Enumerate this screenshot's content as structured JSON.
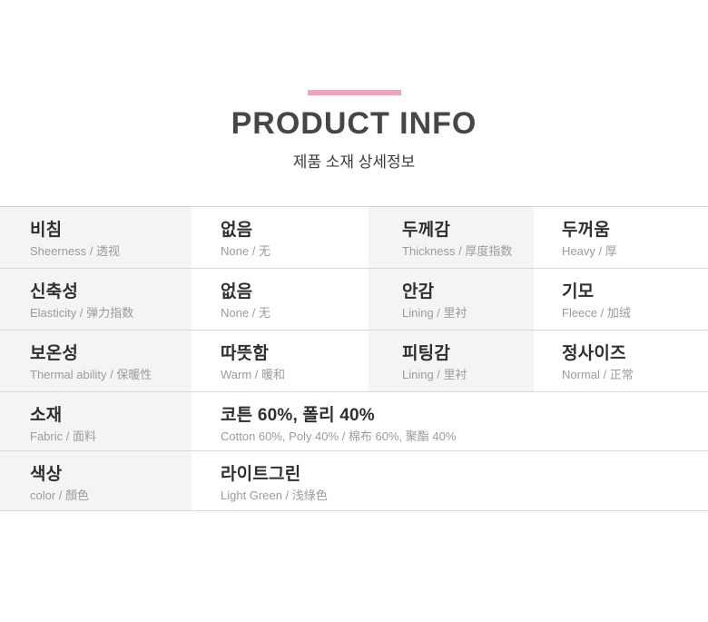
{
  "header": {
    "title": "PRODUCT INFO",
    "subtitle": "제품 소재 상세정보"
  },
  "colors": {
    "accent_pink": "#f3a2bc",
    "title_gray": "#45454a",
    "label_cell_bg": "#f4f4f4",
    "divider": "#d9d9d9",
    "main_text": "#2f2f33",
    "sub_text": "#9b9b9b"
  },
  "table": {
    "rows": [
      {
        "cells": [
          {
            "main": "비침",
            "sub": "Sheerness / 透视"
          },
          {
            "main": "없음",
            "sub": "None / 无"
          },
          {
            "main": "두께감",
            "sub": "Thickness / 厚度指数"
          },
          {
            "main": "두꺼움",
            "sub": "Heavy / 厚"
          }
        ]
      },
      {
        "cells": [
          {
            "main": "신축성",
            "sub": "Elasticity / 弹力指数"
          },
          {
            "main": "없음",
            "sub": "None / 无"
          },
          {
            "main": "안감",
            "sub": "Lining / 里衬"
          },
          {
            "main": "기모",
            "sub": "Fleece / 加绒"
          }
        ]
      },
      {
        "cells": [
          {
            "main": "보온성",
            "sub": "Thermal ability / 保暖性"
          },
          {
            "main": "따뜻함",
            "sub": "Warm / 暖和"
          },
          {
            "main": "피팅감",
            "sub": "Lining / 里衬"
          },
          {
            "main": "정사이즈",
            "sub": "Normal / 正常"
          }
        ]
      },
      {
        "cells": [
          {
            "main": "소재",
            "sub": "Fabric / 面料"
          },
          {
            "main": "코튼 60%, 폴리 40%",
            "sub": "Cotton 60%, Poly 40% / 棉布 60%, 聚酯 40%"
          }
        ]
      },
      {
        "cells": [
          {
            "main": "색상",
            "sub": "color / 顏色"
          },
          {
            "main": "라이트그린",
            "sub": "Light Green / 浅綠色"
          }
        ]
      }
    ]
  }
}
